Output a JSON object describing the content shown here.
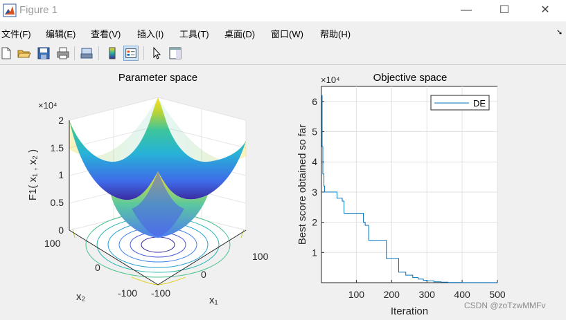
{
  "window": {
    "title": "Figure 1",
    "minimize": "—",
    "maximize": "☐",
    "close": "✕"
  },
  "menu": [
    "文件(F)",
    "编辑(E)",
    "查看(V)",
    "插入(I)",
    "工具(T)",
    "桌面(D)",
    "窗口(W)",
    "帮助(H)"
  ],
  "toolbar": [
    "new-file-icon",
    "open-folder-icon",
    "save-icon",
    "print-icon",
    "print-preview-icon",
    "colorbar-icon",
    "legend-icon",
    "pointer-icon",
    "property-editor-icon"
  ],
  "left_plot": {
    "title": "Parameter space",
    "z_exponent": "×10⁴",
    "z_ticks": [
      "2",
      "1.5",
      "1",
      "0.5",
      "0"
    ],
    "x1_ticks": [
      "100",
      "0",
      "-100"
    ],
    "x2_ticks": [
      "100",
      "0",
      "-100"
    ],
    "zlabel": "F1( x₁ , x₂ )",
    "xlabel": "x₁",
    "ylabel": "x₂"
  },
  "chart_data": {
    "type": "line",
    "title": "Objective space",
    "xlabel": "Iteration",
    "ylabel": "Best score obtained so far",
    "y_exponent": "×10⁴",
    "xlim": [
      1,
      500
    ],
    "ylim": [
      0,
      65000
    ],
    "xticks": [
      100,
      200,
      300,
      400,
      500
    ],
    "yticks": [
      1,
      2,
      3,
      4,
      5,
      6
    ],
    "grid": true,
    "legend_position": "top-right",
    "series": [
      {
        "name": "DE",
        "color": "#0072bd",
        "x": [
          1,
          3,
          5,
          8,
          10,
          20,
          40,
          45,
          55,
          60,
          65,
          80,
          100,
          120,
          125,
          135,
          150,
          175,
          185,
          200,
          220,
          240,
          260,
          275,
          290,
          300,
          320,
          340,
          360,
          400,
          500
        ],
        "y": [
          62000,
          45000,
          36000,
          32000,
          30000,
          30000,
          30000,
          28000,
          28000,
          27000,
          23000,
          23000,
          23000,
          20000,
          19000,
          14000,
          14000,
          14000,
          8000,
          8000,
          3500,
          2500,
          1700,
          1200,
          800,
          600,
          300,
          150,
          80,
          20,
          5
        ]
      }
    ]
  },
  "watermark": "CSDN @zoTzwMMFv"
}
